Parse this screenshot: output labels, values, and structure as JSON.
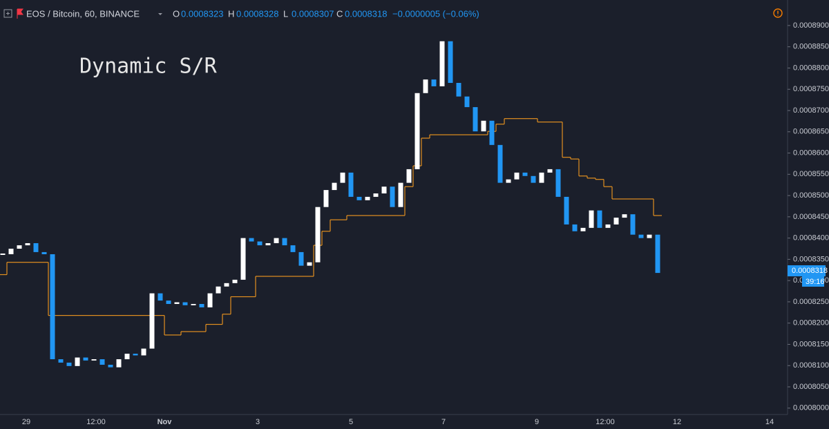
{
  "chart_data": {
    "type": "candlestick",
    "symbol": "EOS / Bitcoin, 60, BINANCE",
    "ohlc": [
      {
        "key": "O",
        "value": "0.0008323"
      },
      {
        "key": "H",
        "value": "0.0008328"
      },
      {
        "key": "L",
        "value": "0.0008307"
      },
      {
        "key": "C",
        "value": "0.0008318"
      }
    ],
    "change": "−0.0000005 (−0.06%)",
    "annotation": "Dynamic S/R",
    "last_price": {
      "price": "0.0008318",
      "countdown": "39:16"
    },
    "up_color": "#ffffff",
    "down_color": "#2196f3",
    "closes": [
      0.0008362,
      0.0008375,
      0.0008383,
      0.0008388,
      0.0008367,
      0.0008362,
      0.0008115,
      0.0008107,
      0.0008099,
      0.0008119,
      0.0008112,
      0.0008115,
      0.0008102,
      0.0008096,
      0.0008115,
      0.0008128,
      0.0008124,
      0.000814,
      0.000827,
      0.0008253,
      0.0008245,
      0.0008249,
      0.0008242,
      0.0008245,
      0.0008237,
      0.000827,
      0.0008286,
      0.0008294,
      0.0008302,
      0.00084,
      0.0008392,
      0.0008383,
      0.0008388,
      0.00084,
      0.0008383,
      0.0008367,
      0.0008335,
      0.0008343,
      0.0008473,
      0.0008513,
      0.000853,
      0.0008554,
      0.0008497,
      0.0008489,
      0.0008497,
      0.0008505,
      0.0008521,
      0.0008473,
      0.000853,
      0.0008562,
      0.0008741,
      0.0008773,
      0.0008757,
      0.0008863,
      0.0008765,
      0.0008733,
      0.0008708,
      0.0008651,
      0.0008676,
      0.0008619,
      0.000853,
      0.0008538,
      0.0008554,
      0.0008546,
      0.000853,
      0.0008554,
      0.0008562,
      0.0008497,
      0.0008432,
      0.0008416,
      0.0008424,
      0.0008465,
      0.0008424,
      0.0008432,
      0.0008448,
      0.0008456,
      0.0008408,
      0.00084,
      0.0008408,
      0.0008318
    ],
    "sr": {
      "name": "Dynamic S/R",
      "color": "#e3901f",
      "values": [
        0.0008314,
        0.0008343,
        0.0008343,
        0.0008343,
        0.0008343,
        0.0008343,
        0.0008218,
        0.0008218,
        0.0008218,
        0.0008218,
        0.0008218,
        0.0008218,
        0.0008218,
        0.0008218,
        0.0008218,
        0.0008218,
        0.0008218,
        0.0008218,
        0.0008218,
        0.0008218,
        0.0008172,
        0.0008172,
        0.000818,
        0.000818,
        0.000818,
        0.0008197,
        0.0008197,
        0.0008221,
        0.0008262,
        0.0008262,
        0.0008262,
        0.000831,
        0.000831,
        0.000831,
        0.000831,
        0.000831,
        0.000831,
        0.000831,
        0.0008383,
        0.0008416,
        0.0008443,
        0.0008443,
        0.0008453,
        0.0008453,
        0.0008453,
        0.0008453,
        0.0008453,
        0.0008453,
        0.0008453,
        0.0008521,
        0.000857,
        0.0008635,
        0.0008643,
        0.0008643,
        0.0008643,
        0.0008643,
        0.0008643,
        0.0008643,
        0.0008643,
        0.0008651,
        0.0008668,
        0.0008681,
        0.0008681,
        0.0008681,
        0.0008681,
        0.0008673,
        0.0008673,
        0.0008673,
        0.000859,
        0.0008586,
        0.0008546,
        0.0008541,
        0.0008538,
        0.0008521,
        0.0008492,
        0.0008492,
        0.0008492,
        0.0008492,
        0.0008492,
        0.0008453
      ]
    },
    "x_labels": [
      "29",
      "12:00",
      "Nov",
      "3",
      "5",
      "7",
      "9",
      "12:00",
      "12",
      "14"
    ],
    "ylim": [
      0.0007985,
      0.000896
    ],
    "yticks": [
      {
        "value": 0.0008,
        "label": "0.0008000"
      },
      {
        "value": 0.000805,
        "label": "0.0008050"
      },
      {
        "value": 0.00081,
        "label": "0.0008100"
      },
      {
        "value": 0.000815,
        "label": "0.0008150"
      },
      {
        "value": 0.00082,
        "label": "0.0008200"
      },
      {
        "value": 0.000825,
        "label": "0.0008250"
      },
      {
        "value": 0.00083,
        "label": "0.0008300"
      },
      {
        "value": 0.000835,
        "label": "0.0008350"
      },
      {
        "value": 0.00084,
        "label": "0.0008400"
      },
      {
        "value": 0.000845,
        "label": "0.0008450"
      },
      {
        "value": 0.00085,
        "label": "0.0008500"
      },
      {
        "value": 0.000855,
        "label": "0.0008550"
      },
      {
        "value": 0.00086,
        "label": "0.0008600"
      },
      {
        "value": 0.000865,
        "label": "0.0008650"
      },
      {
        "value": 0.00087,
        "label": "0.0008700"
      },
      {
        "value": 0.000875,
        "label": "0.0008750"
      },
      {
        "value": 0.00088,
        "label": "0.0008800"
      },
      {
        "value": 0.000885,
        "label": "0.0008850"
      },
      {
        "value": 0.00089,
        "label": "0.0008900"
      }
    ]
  }
}
